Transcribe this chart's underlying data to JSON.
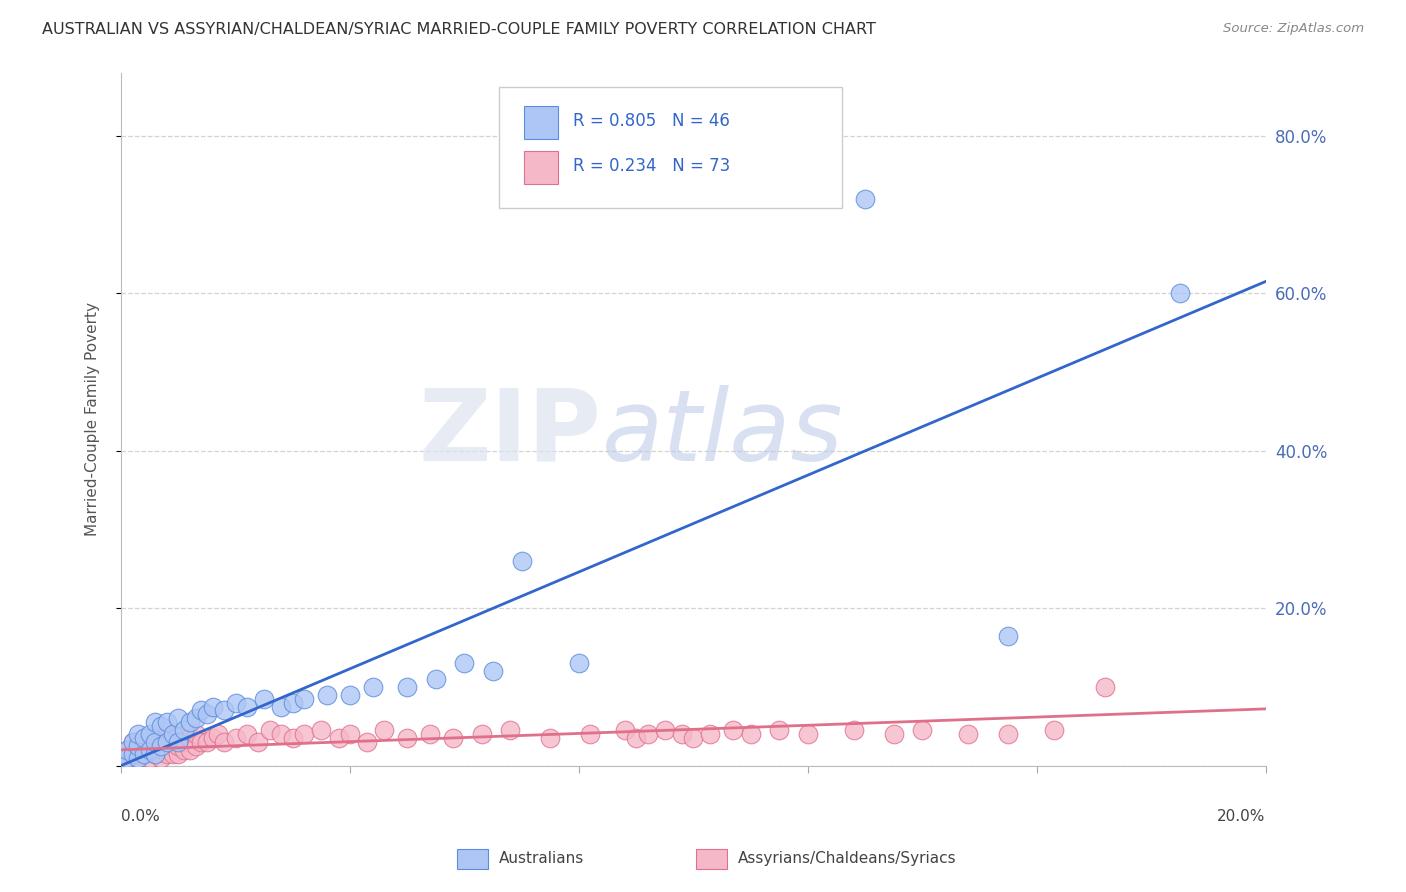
{
  "title": "AUSTRALIAN VS ASSYRIAN/CHALDEAN/SYRIAC MARRIED-COUPLE FAMILY POVERTY CORRELATION CHART",
  "source": "Source: ZipAtlas.com",
  "ylabel": "Married-Couple Family Poverty",
  "xmin": 0.0,
  "xmax": 0.2,
  "ymin": 0.0,
  "ymax": 0.88,
  "yticks": [
    0.0,
    0.2,
    0.4,
    0.6,
    0.8
  ],
  "ytick_labels": [
    "",
    "20.0%",
    "40.0%",
    "60.0%",
    "80.0%"
  ],
  "ytick_color": "#4b6cb7",
  "blue_color": "#aec6f5",
  "pink_color": "#f5b8c8",
  "blue_edge": "#5b8ddd",
  "pink_edge": "#e07090",
  "blue_line_color": "#3366cc",
  "pink_line_color": "#e0708a",
  "R_blue": 0.805,
  "N_blue": 46,
  "R_pink": 0.234,
  "N_pink": 73,
  "legend_label_blue": "Australians",
  "legend_label_pink": "Assyrians/Chaldeans/Syriacs",
  "watermark_zip": "ZIP",
  "watermark_atlas": "atlas",
  "background_color": "#ffffff",
  "grid_color": "#c8c8c8",
  "blue_line_x0": 0.0,
  "blue_line_y0": 0.0,
  "blue_line_x1": 0.2,
  "blue_line_y1": 0.615,
  "pink_line_x0": 0.0,
  "pink_line_y0": 0.02,
  "pink_line_x1": 0.2,
  "pink_line_y1": 0.072,
  "blue_scatter_x": [
    0.001,
    0.001,
    0.002,
    0.002,
    0.003,
    0.003,
    0.003,
    0.004,
    0.004,
    0.005,
    0.005,
    0.006,
    0.006,
    0.006,
    0.007,
    0.007,
    0.008,
    0.008,
    0.009,
    0.01,
    0.01,
    0.011,
    0.012,
    0.013,
    0.014,
    0.015,
    0.016,
    0.018,
    0.02,
    0.022,
    0.025,
    0.028,
    0.03,
    0.032,
    0.036,
    0.04,
    0.044,
    0.05,
    0.055,
    0.06,
    0.065,
    0.07,
    0.08,
    0.13,
    0.155,
    0.185
  ],
  "blue_scatter_y": [
    0.01,
    0.02,
    0.015,
    0.03,
    0.01,
    0.025,
    0.04,
    0.015,
    0.035,
    0.02,
    0.04,
    0.015,
    0.03,
    0.055,
    0.025,
    0.05,
    0.03,
    0.055,
    0.04,
    0.03,
    0.06,
    0.045,
    0.055,
    0.06,
    0.07,
    0.065,
    0.075,
    0.07,
    0.08,
    0.075,
    0.085,
    0.075,
    0.08,
    0.085,
    0.09,
    0.09,
    0.1,
    0.1,
    0.11,
    0.13,
    0.12,
    0.26,
    0.13,
    0.72,
    0.165,
    0.6
  ],
  "pink_scatter_x": [
    0.001,
    0.001,
    0.002,
    0.002,
    0.002,
    0.003,
    0.003,
    0.003,
    0.004,
    0.004,
    0.005,
    0.005,
    0.005,
    0.006,
    0.006,
    0.007,
    0.007,
    0.008,
    0.008,
    0.008,
    0.009,
    0.009,
    0.01,
    0.01,
    0.01,
    0.011,
    0.011,
    0.012,
    0.012,
    0.013,
    0.013,
    0.014,
    0.015,
    0.016,
    0.017,
    0.018,
    0.02,
    0.022,
    0.024,
    0.026,
    0.028,
    0.03,
    0.032,
    0.035,
    0.038,
    0.04,
    0.043,
    0.046,
    0.05,
    0.054,
    0.058,
    0.063,
    0.068,
    0.075,
    0.082,
    0.088,
    0.09,
    0.092,
    0.095,
    0.098,
    0.1,
    0.103,
    0.107,
    0.11,
    0.115,
    0.12,
    0.128,
    0.135,
    0.14,
    0.148,
    0.155,
    0.163,
    0.172
  ],
  "pink_scatter_y": [
    0.01,
    0.02,
    0.01,
    0.02,
    0.03,
    0.01,
    0.02,
    0.03,
    0.015,
    0.025,
    0.01,
    0.02,
    0.03,
    0.015,
    0.025,
    0.01,
    0.025,
    0.015,
    0.025,
    0.035,
    0.015,
    0.03,
    0.015,
    0.025,
    0.04,
    0.02,
    0.03,
    0.02,
    0.035,
    0.025,
    0.04,
    0.03,
    0.03,
    0.035,
    0.04,
    0.03,
    0.035,
    0.04,
    0.03,
    0.045,
    0.04,
    0.035,
    0.04,
    0.045,
    0.035,
    0.04,
    0.03,
    0.045,
    0.035,
    0.04,
    0.035,
    0.04,
    0.045,
    0.035,
    0.04,
    0.045,
    0.035,
    0.04,
    0.045,
    0.04,
    0.035,
    0.04,
    0.045,
    0.04,
    0.045,
    0.04,
    0.045,
    0.04,
    0.045,
    0.04,
    0.04,
    0.045,
    0.1
  ]
}
